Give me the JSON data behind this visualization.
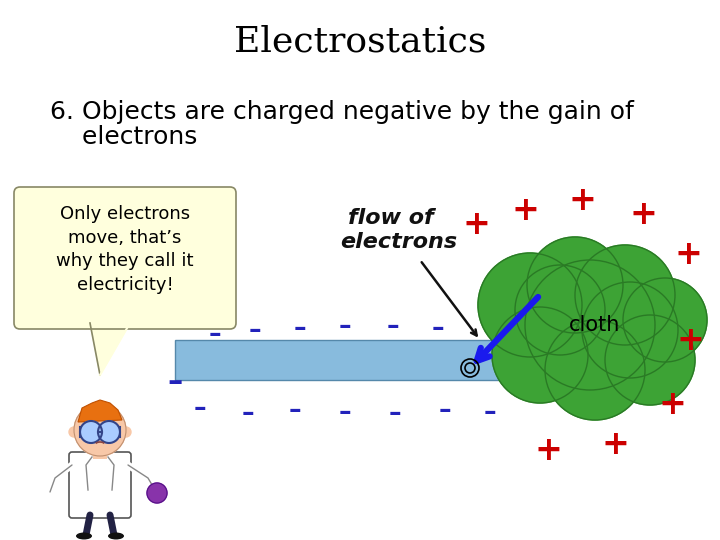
{
  "title": "Electrostatics",
  "subtitle_line1": "6. Objects are charged negative by the gain of",
  "subtitle_line2": "    electrons",
  "speech_text": "Only electrons\nmove, that’s\nwhy they call it\nelectricity!",
  "handwritten_line1": "flow of",
  "handwritten_line2": "electrons",
  "cloth_label": "cloth",
  "bg_color": "#ffffff",
  "title_fontsize": 26,
  "subtitle_fontsize": 18,
  "speech_fontsize": 13,
  "handwritten_fontsize": 16,
  "cloth_color": "#3da335",
  "cloth_edge_color": "#2a7a25",
  "rod_color": "#88bbdd",
  "rod_edge_color": "#5588aa",
  "speech_bg": "#ffffdd",
  "minus_color": "#2222bb",
  "plus_color": "#cc0000",
  "arrow_color": "#1a1aee",
  "black_arrow_color": "#111111",
  "handwritten_color": "#111111"
}
